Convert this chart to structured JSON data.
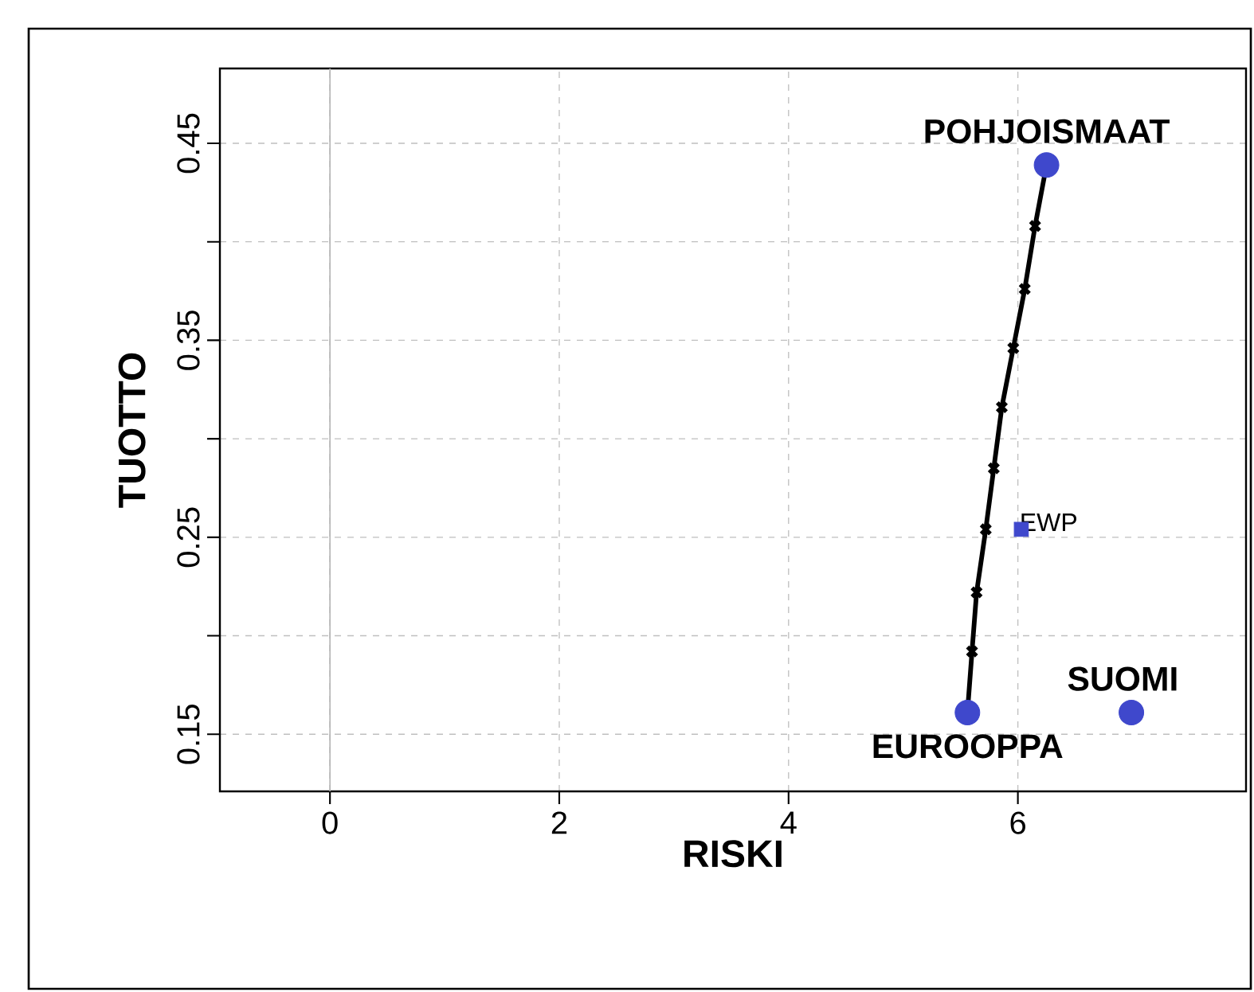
{
  "chart_data": {
    "type": "scatter",
    "xlabel": "RISKI",
    "ylabel": "TUOTTO",
    "xlim": [
      -0.96,
      7.99
    ],
    "ylim": [
      0.121,
      0.488
    ],
    "xticks": [
      0,
      2,
      4,
      6
    ],
    "yticks": [
      0.15,
      {
        "value": 0.2,
        "label": null
      },
      0.25,
      {
        "value": 0.3,
        "label": null
      },
      0.35,
      {
        "value": 0.4,
        "label": null
      },
      0.45
    ],
    "grid": true,
    "ref_lines": [
      {
        "axis": "x",
        "value": 0,
        "color": "#b4b4b4",
        "line_style": "solid"
      }
    ],
    "series": [
      {
        "type": "line",
        "color": "#000000",
        "marker": "cross",
        "line_style": "solid",
        "x": [
          5.56,
          5.6,
          5.64,
          5.72,
          5.79,
          5.86,
          5.96,
          6.06,
          6.15,
          6.25
        ],
        "values": [
          0.161,
          0.192,
          0.222,
          0.254,
          0.285,
          0.316,
          0.346,
          0.376,
          0.408,
          0.439
        ]
      },
      {
        "color": "#3f48cc",
        "marker": "circle",
        "x": [
          6.25,
          5.56,
          6.99
        ],
        "values": [
          0.439,
          0.161,
          0.161
        ]
      },
      {
        "color": "#3f48cc",
        "marker": "square",
        "x": [
          6.03
        ],
        "values": [
          0.254
        ]
      }
    ],
    "annotations": [
      {
        "text": "POHJOISMAAT",
        "x": 6.25,
        "y": 0.439
      },
      {
        "text": "EUROOPPA",
        "x": 5.56,
        "y": 0.161
      },
      {
        "text": "SUOMI",
        "x": 6.99,
        "y": 0.161
      },
      {
        "text": "EWP",
        "x": 6.03,
        "y": 0.254
      }
    ]
  }
}
